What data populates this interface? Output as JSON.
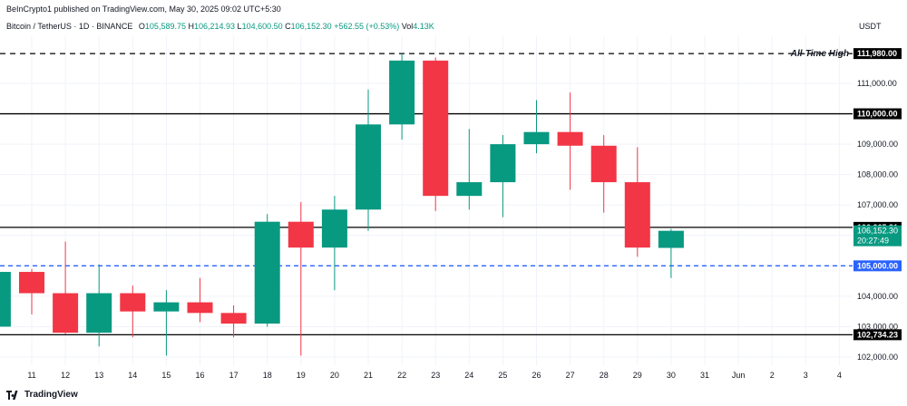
{
  "header": {
    "publisher": "BeInCrypto1 published on TradingView.com, May 30, 2025 09:02 UTC+5:30",
    "symbol": "Bitcoin / TetherUS · 1D · BINANCE",
    "o_label": "O",
    "o": "105,589.75",
    "h_label": "H",
    "h": "106,214.93",
    "l_label": "L",
    "l": "104,600.50",
    "c_label": "C",
    "c": "106,152.30",
    "change": "+562.55 (+0.53%)",
    "vol_label": "Vol",
    "vol": "4.13K"
  },
  "currency": "USDT",
  "footer": {
    "brand": "TradingView"
  },
  "colors": {
    "up": "#089981",
    "down": "#f23645",
    "blue": "#2962ff",
    "line": "#000000",
    "grid": "#f0f3fa",
    "axis_text": "#131722"
  },
  "chart_data": {
    "type": "candlestick",
    "x_ticks": [
      "11",
      "12",
      "13",
      "14",
      "15",
      "16",
      "17",
      "18",
      "19",
      "20",
      "21",
      "22",
      "23",
      "24",
      "25",
      "26",
      "27",
      "28",
      "29",
      "30",
      "31",
      "Jun",
      "2",
      "3",
      "4"
    ],
    "y_ticks": [
      102000,
      103000,
      104000,
      105000,
      106000,
      107000,
      108000,
      109000,
      110000,
      111000
    ],
    "y_tick_labels": [
      "102,000.00",
      "103,000.00",
      "104,000.00",
      "105,000.00",
      "106,000.00",
      "107,000.00",
      "108,000.00",
      "109,000.00",
      "110,000.00",
      "111,000.00"
    ],
    "ylim": [
      101800,
      112300
    ],
    "candles": [
      {
        "x": "10",
        "o": 103000,
        "h": 104900,
        "l": 102950,
        "c": 104800
      },
      {
        "x": "11",
        "o": 104800,
        "h": 104900,
        "l": 103400,
        "c": 104100
      },
      {
        "x": "12",
        "o": 104100,
        "h": 105800,
        "l": 102750,
        "c": 102800
      },
      {
        "x": "13",
        "o": 102800,
        "h": 105050,
        "l": 102350,
        "c": 104100
      },
      {
        "x": "14",
        "o": 104100,
        "h": 104350,
        "l": 102650,
        "c": 103500
      },
      {
        "x": "15",
        "o": 103500,
        "h": 104200,
        "l": 102050,
        "c": 103800
      },
      {
        "x": "16",
        "o": 103800,
        "h": 104600,
        "l": 103150,
        "c": 103450
      },
      {
        "x": "17",
        "o": 103450,
        "h": 103700,
        "l": 102650,
        "c": 103100
      },
      {
        "x": "18",
        "o": 103100,
        "h": 106700,
        "l": 103000,
        "c": 106450
      },
      {
        "x": "19",
        "o": 106450,
        "h": 107100,
        "l": 102050,
        "c": 105600
      },
      {
        "x": "20",
        "o": 105600,
        "h": 107300,
        "l": 104200,
        "c": 106850
      },
      {
        "x": "21",
        "o": 106850,
        "h": 110800,
        "l": 106150,
        "c": 109650
      },
      {
        "x": "22",
        "o": 109650,
        "h": 111980,
        "l": 109150,
        "c": 111750
      },
      {
        "x": "23",
        "o": 111750,
        "h": 111850,
        "l": 106800,
        "c": 107300
      },
      {
        "x": "24",
        "o": 107300,
        "h": 109500,
        "l": 106850,
        "c": 107750
      },
      {
        "x": "25",
        "o": 107750,
        "h": 109300,
        "l": 106600,
        "c": 109000
      },
      {
        "x": "26",
        "o": 109000,
        "h": 110450,
        "l": 108700,
        "c": 109400
      },
      {
        "x": "27",
        "o": 109400,
        "h": 110700,
        "l": 107500,
        "c": 108950
      },
      {
        "x": "28",
        "o": 108950,
        "h": 109300,
        "l": 106750,
        "c": 107750
      },
      {
        "x": "29",
        "o": 107750,
        "h": 108900,
        "l": 105300,
        "c": 105600
      },
      {
        "x": "30",
        "o": 105589.75,
        "h": 106214.93,
        "l": 104600.5,
        "c": 106152.3
      }
    ],
    "levels": [
      {
        "name": "ath-line",
        "value": 111980,
        "label": "111,980.00",
        "style": "dashed",
        "color": "#000000",
        "annotation": "All-Time High"
      },
      {
        "name": "resistance-110000",
        "value": 110000,
        "label": "110,000.00",
        "style": "solid",
        "color": "#000000"
      },
      {
        "name": "level-106265",
        "value": 106265.31,
        "label": "106,265.31",
        "style": "solid",
        "color": "#000000"
      },
      {
        "name": "level-105000",
        "value": 105000,
        "label": "105,000.00",
        "style": "dashed",
        "color": "#2962ff"
      },
      {
        "name": "support-102734",
        "value": 102734.23,
        "label": "102,734.23",
        "style": "solid",
        "color": "#000000"
      }
    ],
    "current_price": {
      "value": 106152.3,
      "label": "106,152.30",
      "countdown": "20:27:49"
    },
    "grid": true
  }
}
